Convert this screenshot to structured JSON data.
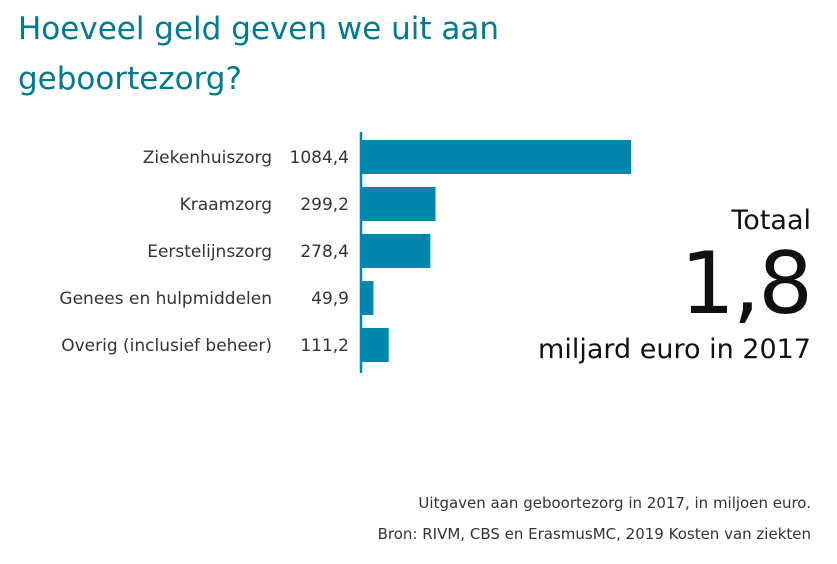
{
  "title": "Hoeveel geld geven we uit aan geboortezorg?",
  "chart_data": {
    "type": "bar",
    "orientation": "horizontal",
    "categories": [
      "Ziekenhuiszorg",
      "Kraamzorg",
      "Eerstelijnszorg",
      "Genees en hulpmiddelen",
      "Overig (inclusief beheer)"
    ],
    "values": [
      1084.4,
      299.2,
      278.4,
      49.9,
      111.2
    ],
    "value_labels": [
      "1084,4",
      "299,2",
      "278,4",
      "49,9",
      "111,2"
    ],
    "bar_color": "#0086ad",
    "axis_color": "#0086ad",
    "grid": false
  },
  "total": {
    "label": "Totaal",
    "value": "1,8",
    "unit": "miljard euro in 2017"
  },
  "footer": {
    "note": "Uitgaven aan geboortezorg in 2017, in miljoen euro.",
    "source": "Bron: RIVM, CBS en ErasmusMC, 2019 Kosten van ziekten"
  },
  "colors": {
    "title": "#00798c",
    "bar": "#0086ad"
  }
}
